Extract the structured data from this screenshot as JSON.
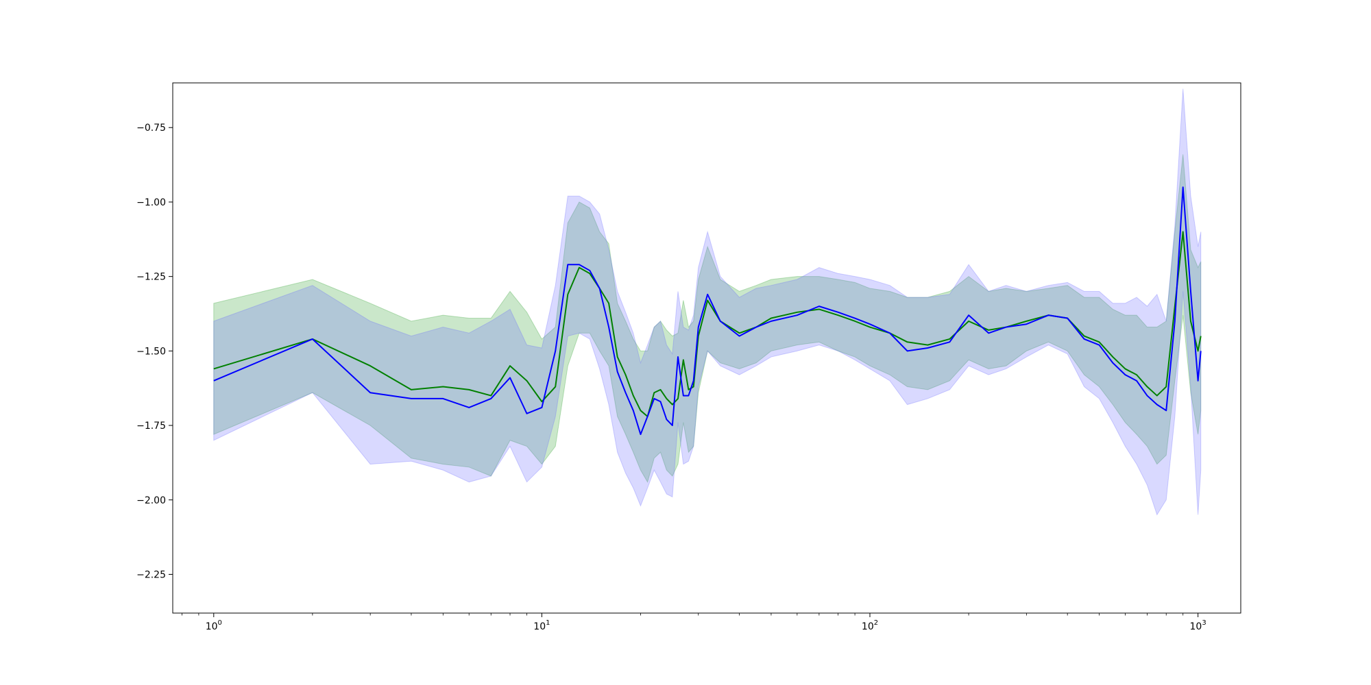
{
  "chart_data": {
    "type": "line",
    "title": "",
    "xlabel": "",
    "ylabel": "",
    "x_scale": "log",
    "xlim": [
      0.75,
      1350
    ],
    "ylim": [
      -2.38,
      -0.6
    ],
    "grid": false,
    "legend": "none",
    "x_ticks": [
      {
        "value": 1,
        "base": "10",
        "exp": "0"
      },
      {
        "value": 10,
        "base": "10",
        "exp": "1"
      },
      {
        "value": 100,
        "base": "10",
        "exp": "2"
      },
      {
        "value": 1000,
        "base": "10",
        "exp": "3"
      }
    ],
    "y_ticks": [
      {
        "value": -0.75,
        "label": "−0.75"
      },
      {
        "value": -1.0,
        "label": "−1.00"
      },
      {
        "value": -1.25,
        "label": "−1.25"
      },
      {
        "value": -1.5,
        "label": "−1.50"
      },
      {
        "value": -1.75,
        "label": "−1.75"
      },
      {
        "value": -2.0,
        "label": "−2.00"
      },
      {
        "value": -2.25,
        "label": "−2.25"
      }
    ],
    "series": [
      {
        "color": "#008000",
        "band_color": "#2ca02c",
        "x": [
          1,
          2,
          3,
          4,
          5,
          6,
          7,
          8,
          9,
          10,
          11,
          12,
          13,
          14,
          15,
          16,
          17,
          18,
          19,
          20,
          21,
          22,
          23,
          24,
          25,
          26,
          27,
          28,
          29,
          30,
          32,
          35,
          40,
          45,
          50,
          60,
          70,
          80,
          90,
          100,
          115,
          130,
          150,
          175,
          200,
          230,
          260,
          300,
          350,
          400,
          450,
          500,
          550,
          600,
          650,
          700,
          750,
          800,
          850,
          900,
          950,
          1000,
          1020
        ],
        "y": [
          -1.56,
          -1.46,
          -1.55,
          -1.63,
          -1.62,
          -1.63,
          -1.65,
          -1.55,
          -1.6,
          -1.67,
          -1.62,
          -1.31,
          -1.22,
          -1.24,
          -1.29,
          -1.34,
          -1.52,
          -1.58,
          -1.65,
          -1.7,
          -1.72,
          -1.64,
          -1.63,
          -1.66,
          -1.68,
          -1.66,
          -1.53,
          -1.63,
          -1.62,
          -1.45,
          -1.33,
          -1.4,
          -1.44,
          -1.42,
          -1.39,
          -1.37,
          -1.36,
          -1.38,
          -1.4,
          -1.42,
          -1.44,
          -1.47,
          -1.48,
          -1.46,
          -1.4,
          -1.43,
          -1.42,
          -1.4,
          -1.38,
          -1.39,
          -1.45,
          -1.47,
          -1.52,
          -1.56,
          -1.58,
          -1.62,
          -1.65,
          -1.62,
          -1.35,
          -1.1,
          -1.4,
          -1.5,
          -1.45
        ],
        "lower": [
          -1.78,
          -1.64,
          -1.75,
          -1.86,
          -1.88,
          -1.89,
          -1.92,
          -1.8,
          -1.82,
          -1.88,
          -1.82,
          -1.55,
          -1.44,
          -1.44,
          -1.5,
          -1.55,
          -1.72,
          -1.78,
          -1.84,
          -1.9,
          -1.94,
          -1.86,
          -1.84,
          -1.9,
          -1.92,
          -1.88,
          -1.74,
          -1.84,
          -1.82,
          -1.64,
          -1.5,
          -1.54,
          -1.56,
          -1.54,
          -1.5,
          -1.48,
          -1.47,
          -1.5,
          -1.52,
          -1.55,
          -1.58,
          -1.62,
          -1.63,
          -1.6,
          -1.53,
          -1.56,
          -1.55,
          -1.5,
          -1.47,
          -1.5,
          -1.58,
          -1.62,
          -1.68,
          -1.74,
          -1.78,
          -1.82,
          -1.88,
          -1.85,
          -1.6,
          -1.38,
          -1.64,
          -1.78,
          -1.7
        ],
        "upper": [
          -1.34,
          -1.26,
          -1.34,
          -1.4,
          -1.38,
          -1.39,
          -1.39,
          -1.3,
          -1.37,
          -1.46,
          -1.42,
          -1.07,
          -1.0,
          -1.02,
          -1.1,
          -1.14,
          -1.34,
          -1.4,
          -1.46,
          -1.5,
          -1.5,
          -1.42,
          -1.4,
          -1.43,
          -1.45,
          -1.44,
          -1.33,
          -1.42,
          -1.4,
          -1.26,
          -1.15,
          -1.26,
          -1.3,
          -1.28,
          -1.26,
          -1.25,
          -1.25,
          -1.26,
          -1.27,
          -1.29,
          -1.3,
          -1.32,
          -1.32,
          -1.3,
          -1.25,
          -1.3,
          -1.29,
          -1.3,
          -1.29,
          -1.28,
          -1.32,
          -1.32,
          -1.36,
          -1.38,
          -1.38,
          -1.42,
          -1.42,
          -1.4,
          -1.1,
          -0.84,
          -1.16,
          -1.22,
          -1.2
        ]
      },
      {
        "color": "#0000ff",
        "band_color": "#6666ff",
        "x": [
          1,
          2,
          3,
          4,
          5,
          6,
          7,
          8,
          9,
          10,
          11,
          12,
          13,
          14,
          15,
          16,
          17,
          18,
          19,
          20,
          21,
          22,
          23,
          24,
          25,
          26,
          27,
          28,
          29,
          30,
          32,
          35,
          40,
          45,
          50,
          60,
          70,
          80,
          90,
          100,
          115,
          130,
          150,
          175,
          200,
          230,
          260,
          300,
          350,
          400,
          450,
          500,
          550,
          600,
          650,
          700,
          750,
          800,
          850,
          900,
          950,
          1000,
          1020
        ],
        "y": [
          -1.6,
          -1.46,
          -1.64,
          -1.66,
          -1.66,
          -1.69,
          -1.66,
          -1.59,
          -1.71,
          -1.69,
          -1.5,
          -1.21,
          -1.21,
          -1.23,
          -1.29,
          -1.42,
          -1.57,
          -1.64,
          -1.7,
          -1.78,
          -1.72,
          -1.66,
          -1.67,
          -1.73,
          -1.75,
          -1.52,
          -1.65,
          -1.65,
          -1.6,
          -1.42,
          -1.31,
          -1.4,
          -1.45,
          -1.42,
          -1.4,
          -1.38,
          -1.35,
          -1.37,
          -1.39,
          -1.41,
          -1.44,
          -1.5,
          -1.49,
          -1.47,
          -1.38,
          -1.44,
          -1.42,
          -1.41,
          -1.38,
          -1.39,
          -1.46,
          -1.48,
          -1.54,
          -1.58,
          -1.6,
          -1.65,
          -1.68,
          -1.7,
          -1.4,
          -0.95,
          -1.3,
          -1.6,
          -1.5
        ],
        "lower": [
          -1.8,
          -1.64,
          -1.88,
          -1.87,
          -1.9,
          -1.94,
          -1.92,
          -1.82,
          -1.94,
          -1.89,
          -1.72,
          -1.45,
          -1.44,
          -1.46,
          -1.56,
          -1.68,
          -1.84,
          -1.91,
          -1.96,
          -2.02,
          -1.96,
          -1.9,
          -1.94,
          -1.98,
          -1.99,
          -1.74,
          -1.88,
          -1.87,
          -1.82,
          -1.62,
          -1.5,
          -1.55,
          -1.58,
          -1.55,
          -1.52,
          -1.5,
          -1.48,
          -1.5,
          -1.53,
          -1.56,
          -1.6,
          -1.68,
          -1.66,
          -1.63,
          -1.55,
          -1.58,
          -1.56,
          -1.52,
          -1.48,
          -1.51,
          -1.62,
          -1.66,
          -1.74,
          -1.82,
          -1.88,
          -1.95,
          -2.05,
          -2.0,
          -1.72,
          -1.3,
          -1.62,
          -2.05,
          -1.9
        ],
        "upper": [
          -1.4,
          -1.28,
          -1.4,
          -1.45,
          -1.42,
          -1.44,
          -1.4,
          -1.36,
          -1.48,
          -1.49,
          -1.28,
          -0.98,
          -0.98,
          -1.0,
          -1.04,
          -1.16,
          -1.3,
          -1.37,
          -1.44,
          -1.54,
          -1.48,
          -1.42,
          -1.4,
          -1.48,
          -1.51,
          -1.3,
          -1.42,
          -1.43,
          -1.38,
          -1.22,
          -1.1,
          -1.25,
          -1.32,
          -1.29,
          -1.28,
          -1.26,
          -1.22,
          -1.24,
          -1.25,
          -1.26,
          -1.28,
          -1.32,
          -1.32,
          -1.31,
          -1.21,
          -1.3,
          -1.28,
          -1.3,
          -1.28,
          -1.27,
          -1.3,
          -1.3,
          -1.34,
          -1.34,
          -1.32,
          -1.35,
          -1.31,
          -1.4,
          -1.08,
          -0.62,
          -0.98,
          -1.15,
          -1.1
        ]
      }
    ]
  }
}
